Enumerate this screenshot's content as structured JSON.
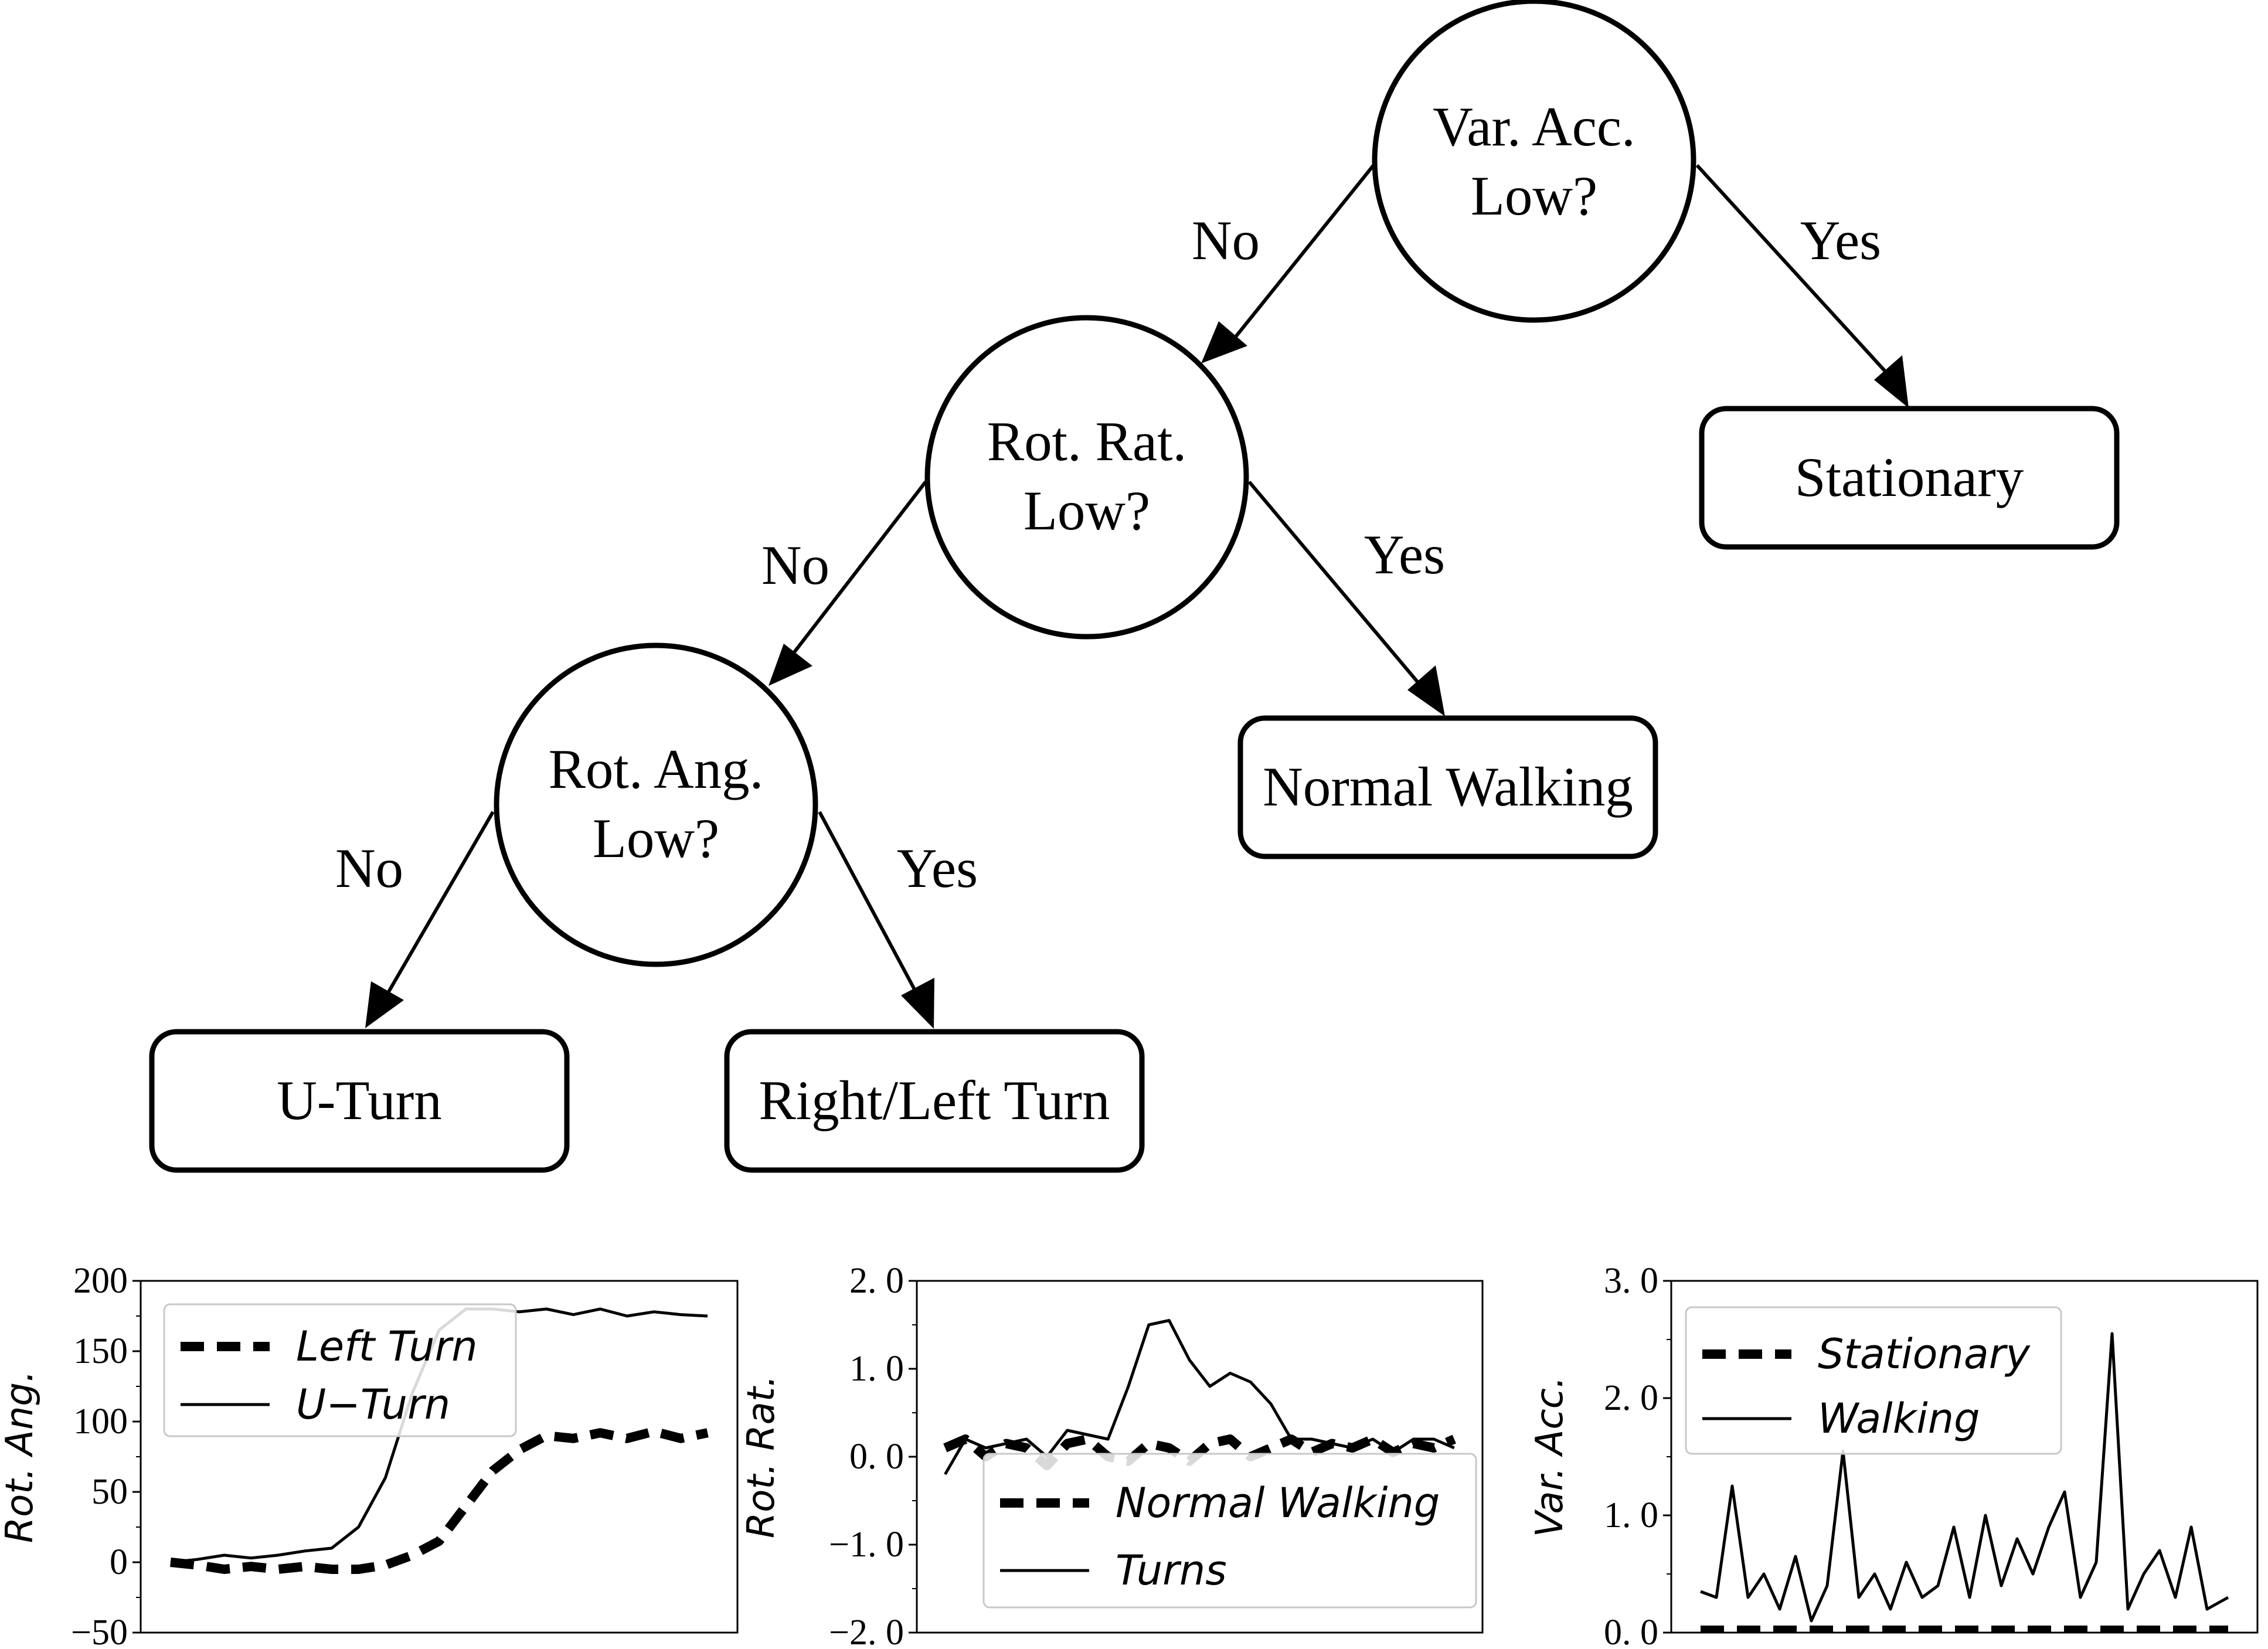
{
  "tree": {
    "nodes": {
      "var_acc": [
        "Var. Acc.",
        "Low?"
      ],
      "rot_rat": [
        "Rot. Rat.",
        "Low?"
      ],
      "rot_ang": [
        "Rot. Ang.",
        "Low?"
      ],
      "stationary": "Stationary",
      "normal_walking": "Normal Walking",
      "u_turn": "U-Turn",
      "right_left_turn": "Right/Left Turn"
    },
    "edges": {
      "var_no": "No",
      "var_yes": "Yes",
      "rat_no": "No",
      "rat_yes": "Yes",
      "ang_no": "No",
      "ang_yes": "Yes"
    }
  },
  "chart_data": [
    {
      "type": "line",
      "ylabel": "Rot. Ang.",
      "ylim": [
        -50,
        200
      ],
      "yticks": [
        "200",
        "150",
        "100",
        "50",
        "0",
        "−50"
      ],
      "ytick_values": [
        200,
        150,
        100,
        50,
        0,
        -50
      ],
      "legend_position": "top-left",
      "x": [
        0,
        0.05,
        0.1,
        0.15,
        0.2,
        0.25,
        0.3,
        0.35,
        0.4,
        0.45,
        0.5,
        0.55,
        0.6,
        0.65,
        0.7,
        0.75,
        0.8,
        0.85,
        0.9,
        0.95,
        1.0
      ],
      "series": [
        {
          "name": "Left Turn",
          "style": "dashed",
          "values": [
            0,
            -2,
            -5,
            -3,
            -5,
            -3,
            -5,
            -5,
            -2,
            5,
            15,
            40,
            65,
            80,
            90,
            88,
            92,
            88,
            93,
            88,
            92
          ]
        },
        {
          "name": "U−Turn",
          "style": "solid",
          "values": [
            0,
            2,
            5,
            3,
            5,
            8,
            10,
            25,
            60,
            120,
            165,
            180,
            180,
            178,
            180,
            176,
            180,
            175,
            178,
            176,
            175
          ]
        }
      ]
    },
    {
      "type": "line",
      "ylabel": "Rot. Rat.",
      "ylim": [
        -2.0,
        2.0
      ],
      "yticks": [
        "2. 0",
        "1. 0",
        "0. 0",
        "−1. 0",
        "−2. 0"
      ],
      "ytick_values": [
        2.0,
        1.0,
        0.0,
        -1.0,
        -2.0
      ],
      "legend_position": "bottom-center",
      "x": [
        0,
        0.04,
        0.08,
        0.12,
        0.16,
        0.2,
        0.24,
        0.28,
        0.32,
        0.36,
        0.4,
        0.44,
        0.48,
        0.52,
        0.56,
        0.6,
        0.64,
        0.68,
        0.72,
        0.76,
        0.8,
        0.84,
        0.88,
        0.92,
        0.96,
        1.0
      ],
      "series": [
        {
          "name": "Normal Walking",
          "style": "dashed",
          "values": [
            0.1,
            0.2,
            0.0,
            0.15,
            0.1,
            -0.1,
            0.15,
            0.2,
            0.0,
            -0.05,
            0.15,
            0.1,
            -0.05,
            0.15,
            0.2,
            0.0,
            0.1,
            0.2,
            0.05,
            0.15,
            0.1,
            0.2,
            0.05,
            0.15,
            0.1,
            0.2
          ]
        },
        {
          "name": "Turns",
          "style": "solid",
          "values": [
            -0.2,
            0.2,
            0.1,
            0.15,
            0.2,
            0.0,
            0.3,
            0.25,
            0.2,
            0.8,
            1.5,
            1.55,
            1.1,
            0.8,
            0.95,
            0.85,
            0.6,
            0.2,
            0.2,
            0.15,
            0.1,
            0.2,
            0.05,
            0.2,
            0.2,
            0.1
          ]
        }
      ]
    },
    {
      "type": "line",
      "ylabel": "Var. Acc.",
      "ylim": [
        0.0,
        3.0
      ],
      "yticks": [
        "3. 0",
        "2. 0",
        "1. 0",
        "0. 0"
      ],
      "ytick_values": [
        3.0,
        2.0,
        1.0,
        0.0
      ],
      "legend_position": "top-left",
      "x": [
        0,
        0.03,
        0.06,
        0.09,
        0.12,
        0.15,
        0.18,
        0.21,
        0.24,
        0.27,
        0.3,
        0.33,
        0.36,
        0.39,
        0.42,
        0.45,
        0.48,
        0.51,
        0.54,
        0.57,
        0.6,
        0.63,
        0.66,
        0.69,
        0.72,
        0.75,
        0.78,
        0.81,
        0.84,
        0.87,
        0.9,
        0.93,
        0.96,
        1.0
      ],
      "series": [
        {
          "name": "Stationary",
          "style": "dashed",
          "values": [
            0.02,
            0.02,
            0.02,
            0.02,
            0.02,
            0.02,
            0.02,
            0.02,
            0.02,
            0.02,
            0.02,
            0.02,
            0.02,
            0.02,
            0.02,
            0.02,
            0.02,
            0.02,
            0.02,
            0.02,
            0.02,
            0.02,
            0.02,
            0.02,
            0.02,
            0.02,
            0.02,
            0.02,
            0.02,
            0.02,
            0.02,
            0.02,
            0.02,
            0.02
          ]
        },
        {
          "name": "Walking",
          "style": "solid",
          "values": [
            0.35,
            0.3,
            1.25,
            0.3,
            0.5,
            0.2,
            0.65,
            0.1,
            0.4,
            1.55,
            0.3,
            0.5,
            0.2,
            0.6,
            0.3,
            0.4,
            0.9,
            0.3,
            1.0,
            0.4,
            0.8,
            0.5,
            0.9,
            1.2,
            0.3,
            0.6,
            2.55,
            0.2,
            0.5,
            0.7,
            0.3,
            0.9,
            0.2,
            0.3
          ]
        }
      ]
    }
  ]
}
